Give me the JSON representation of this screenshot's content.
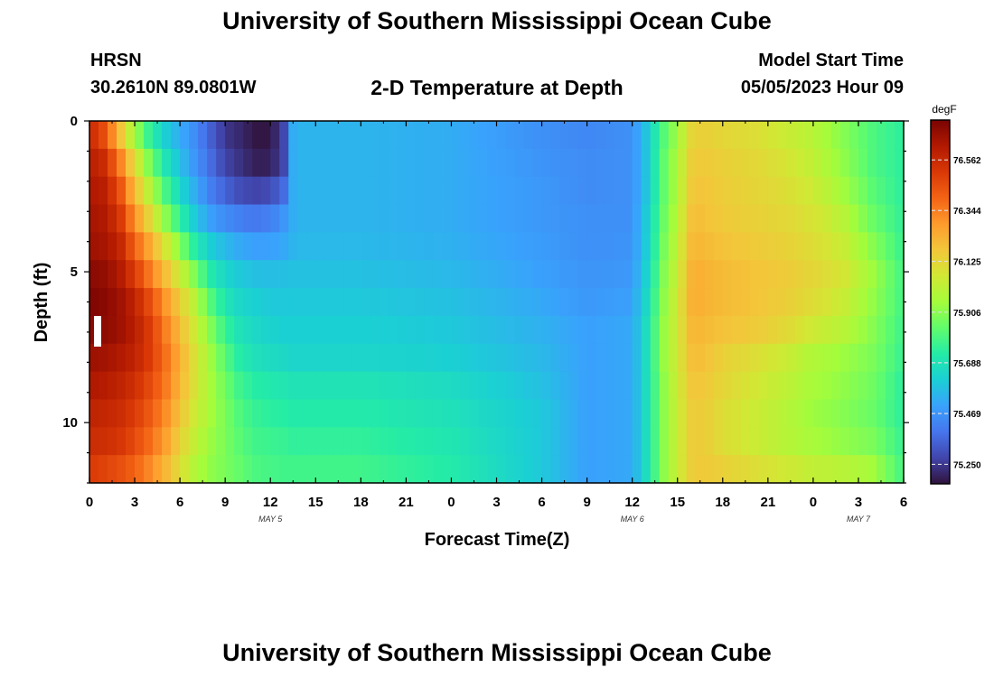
{
  "page": {
    "title_top": "University of Southern Mississippi Ocean Cube",
    "title_bottom": "University of Southern Mississippi Ocean Cube",
    "station": "HRSN",
    "coords": "30.2610N  89.0801W",
    "plot_title": "2-D Temperature at Depth",
    "model_label": "Model Start Time",
    "model_date": "05/05/2023 Hour 09"
  },
  "chart_data": {
    "type": "heatmap",
    "title": "2-D Temperature at Depth",
    "xlabel": "Forecast Time(Z)",
    "ylabel": "Depth (ft)",
    "x_tick_labels": [
      "0",
      "3",
      "6",
      "9",
      "12",
      "15",
      "18",
      "21",
      "0",
      "3",
      "6",
      "9",
      "12",
      "15",
      "18",
      "21",
      "0",
      "3",
      "6"
    ],
    "x_range_hours": [
      0,
      54
    ],
    "date_labels": [
      {
        "text": "MAY 5",
        "hour": 12
      },
      {
        "text": "MAY 6",
        "hour": 36
      },
      {
        "text": "MAY 7",
        "hour": 51
      }
    ],
    "y_ticks": [
      0,
      5,
      10
    ],
    "y_range": [
      0,
      12
    ],
    "y_inverted": true,
    "colorbar": {
      "unit": "degF",
      "range": [
        75.17,
        76.73
      ],
      "tick_labels": [
        "76.562",
        "76.344",
        "76.125",
        "75.906",
        "75.688",
        "75.469",
        "75.250"
      ],
      "colors": [
        "#30123b",
        "#4145ab",
        "#4675ed",
        "#39a2fc",
        "#1bcfd4",
        "#24eca6",
        "#61fc6c",
        "#a4fc3b",
        "#d1e834",
        "#f3c63a",
        "#fe9b2d",
        "#f36315",
        "#d93806",
        "#b11901",
        "#7a0403"
      ]
    },
    "layers_ft": [
      "0",
      "1",
      "2",
      "3",
      "4",
      "5",
      "6",
      "7",
      "8",
      "9",
      "10",
      "11",
      "12"
    ],
    "time_hours": [
      0,
      1,
      2,
      3,
      4,
      5,
      6,
      7,
      8,
      9,
      10,
      11,
      12,
      13,
      13.5,
      14,
      18,
      24,
      30,
      33,
      36,
      37,
      38,
      39,
      40,
      41,
      42,
      44,
      46,
      48,
      50,
      52,
      54
    ],
    "temperature_degF": [
      [
        76.56,
        76.45,
        76.2,
        75.95,
        75.75,
        75.62,
        75.53,
        75.45,
        75.35,
        75.25,
        75.22,
        75.18,
        75.18,
        75.3,
        75.53,
        75.55,
        75.55,
        75.53,
        75.46,
        75.44,
        75.46,
        75.6,
        75.8,
        75.95,
        76.14,
        76.14,
        76.12,
        76.1,
        76.05,
        76.0,
        75.9,
        75.8,
        75.74
      ],
      [
        76.6,
        76.55,
        76.35,
        76.1,
        75.88,
        75.7,
        75.58,
        75.47,
        75.38,
        75.28,
        75.24,
        75.2,
        75.2,
        75.3,
        75.53,
        75.55,
        75.55,
        75.53,
        75.47,
        75.45,
        75.46,
        75.6,
        75.82,
        75.98,
        76.16,
        76.16,
        76.14,
        76.12,
        76.08,
        76.02,
        75.92,
        75.8,
        75.74
      ],
      [
        76.62,
        76.6,
        76.45,
        76.2,
        76.0,
        75.8,
        75.65,
        75.53,
        75.42,
        75.35,
        75.3,
        75.28,
        75.3,
        75.38,
        75.53,
        75.55,
        75.55,
        75.53,
        75.48,
        75.45,
        75.46,
        75.6,
        75.82,
        75.98,
        76.18,
        76.17,
        76.15,
        76.13,
        76.1,
        76.05,
        75.95,
        75.82,
        75.74
      ],
      [
        76.64,
        76.62,
        76.52,
        76.3,
        76.12,
        75.92,
        75.75,
        75.6,
        75.5,
        75.45,
        75.42,
        75.4,
        75.42,
        75.48,
        75.53,
        75.55,
        75.55,
        75.53,
        75.48,
        75.46,
        75.46,
        75.62,
        75.84,
        76.0,
        76.2,
        76.18,
        76.16,
        76.14,
        76.12,
        76.08,
        76.0,
        75.85,
        75.75
      ],
      [
        76.66,
        76.64,
        76.58,
        76.4,
        76.25,
        76.08,
        75.9,
        75.72,
        75.62,
        75.56,
        75.52,
        75.5,
        75.5,
        75.52,
        75.55,
        75.56,
        75.56,
        75.54,
        75.49,
        75.46,
        75.47,
        75.62,
        75.86,
        76.02,
        76.22,
        76.2,
        76.18,
        76.16,
        76.14,
        76.1,
        76.04,
        75.9,
        75.76
      ],
      [
        76.7,
        76.68,
        76.62,
        76.5,
        76.35,
        76.2,
        76.05,
        75.88,
        75.72,
        75.64,
        75.6,
        75.58,
        75.57,
        75.58,
        75.58,
        75.58,
        75.58,
        75.56,
        75.5,
        75.47,
        75.48,
        75.64,
        75.88,
        76.04,
        76.24,
        76.22,
        76.2,
        76.18,
        76.16,
        76.12,
        76.07,
        75.94,
        75.78
      ],
      [
        76.72,
        76.7,
        76.66,
        76.58,
        76.45,
        76.3,
        76.15,
        76.0,
        75.82,
        75.7,
        75.64,
        75.62,
        75.6,
        75.6,
        75.6,
        75.6,
        75.6,
        75.58,
        75.52,
        75.48,
        75.5,
        75.66,
        75.9,
        76.06,
        76.24,
        76.22,
        76.2,
        76.18,
        76.15,
        76.1,
        76.04,
        75.92,
        75.78
      ],
      [
        76.7,
        76.69,
        76.66,
        76.6,
        76.5,
        76.35,
        76.2,
        76.05,
        75.9,
        75.76,
        75.68,
        75.65,
        75.63,
        75.62,
        75.62,
        75.62,
        75.62,
        75.6,
        75.54,
        75.5,
        75.52,
        75.68,
        75.92,
        76.06,
        76.22,
        76.2,
        76.18,
        76.16,
        76.12,
        76.05,
        76.0,
        75.9,
        75.77
      ],
      [
        76.66,
        76.65,
        76.62,
        76.58,
        76.5,
        76.38,
        76.24,
        76.08,
        75.95,
        75.82,
        75.72,
        75.68,
        75.66,
        75.65,
        75.64,
        75.64,
        75.64,
        75.62,
        75.56,
        75.5,
        75.52,
        75.68,
        75.92,
        76.06,
        76.2,
        76.18,
        76.14,
        76.1,
        76.05,
        75.98,
        75.94,
        75.88,
        75.76
      ],
      [
        76.62,
        76.61,
        76.58,
        76.54,
        76.46,
        76.36,
        76.22,
        76.08,
        75.96,
        75.86,
        75.77,
        75.73,
        75.71,
        75.7,
        75.69,
        75.69,
        75.69,
        75.66,
        75.58,
        75.5,
        75.52,
        75.68,
        75.9,
        76.05,
        76.18,
        76.16,
        76.12,
        76.07,
        76.02,
        75.96,
        75.92,
        75.86,
        75.74
      ],
      [
        76.58,
        76.57,
        76.55,
        76.5,
        76.42,
        76.32,
        76.18,
        76.05,
        75.96,
        75.88,
        75.8,
        75.76,
        75.74,
        75.73,
        75.72,
        75.72,
        75.72,
        75.68,
        75.6,
        75.5,
        75.52,
        75.68,
        75.9,
        76.04,
        76.16,
        76.14,
        76.1,
        76.05,
        76.0,
        75.94,
        75.9,
        75.85,
        75.74
      ],
      [
        76.55,
        76.54,
        76.52,
        76.46,
        76.38,
        76.28,
        76.14,
        76.02,
        75.94,
        75.88,
        75.82,
        75.78,
        75.77,
        75.76,
        75.75,
        75.75,
        75.75,
        75.7,
        75.6,
        75.5,
        75.52,
        75.68,
        75.9,
        76.04,
        76.16,
        76.14,
        76.1,
        76.05,
        76.0,
        75.96,
        75.92,
        75.88,
        75.76
      ],
      [
        76.5,
        76.48,
        76.45,
        76.4,
        76.32,
        76.22,
        76.1,
        75.98,
        75.92,
        75.88,
        75.84,
        75.8,
        75.79,
        75.78,
        75.78,
        75.78,
        75.78,
        75.72,
        75.6,
        75.5,
        75.52,
        75.68,
        75.9,
        76.04,
        76.16,
        76.16,
        76.14,
        76.1,
        76.06,
        76.02,
        76.0,
        75.95,
        75.78
      ]
    ]
  }
}
